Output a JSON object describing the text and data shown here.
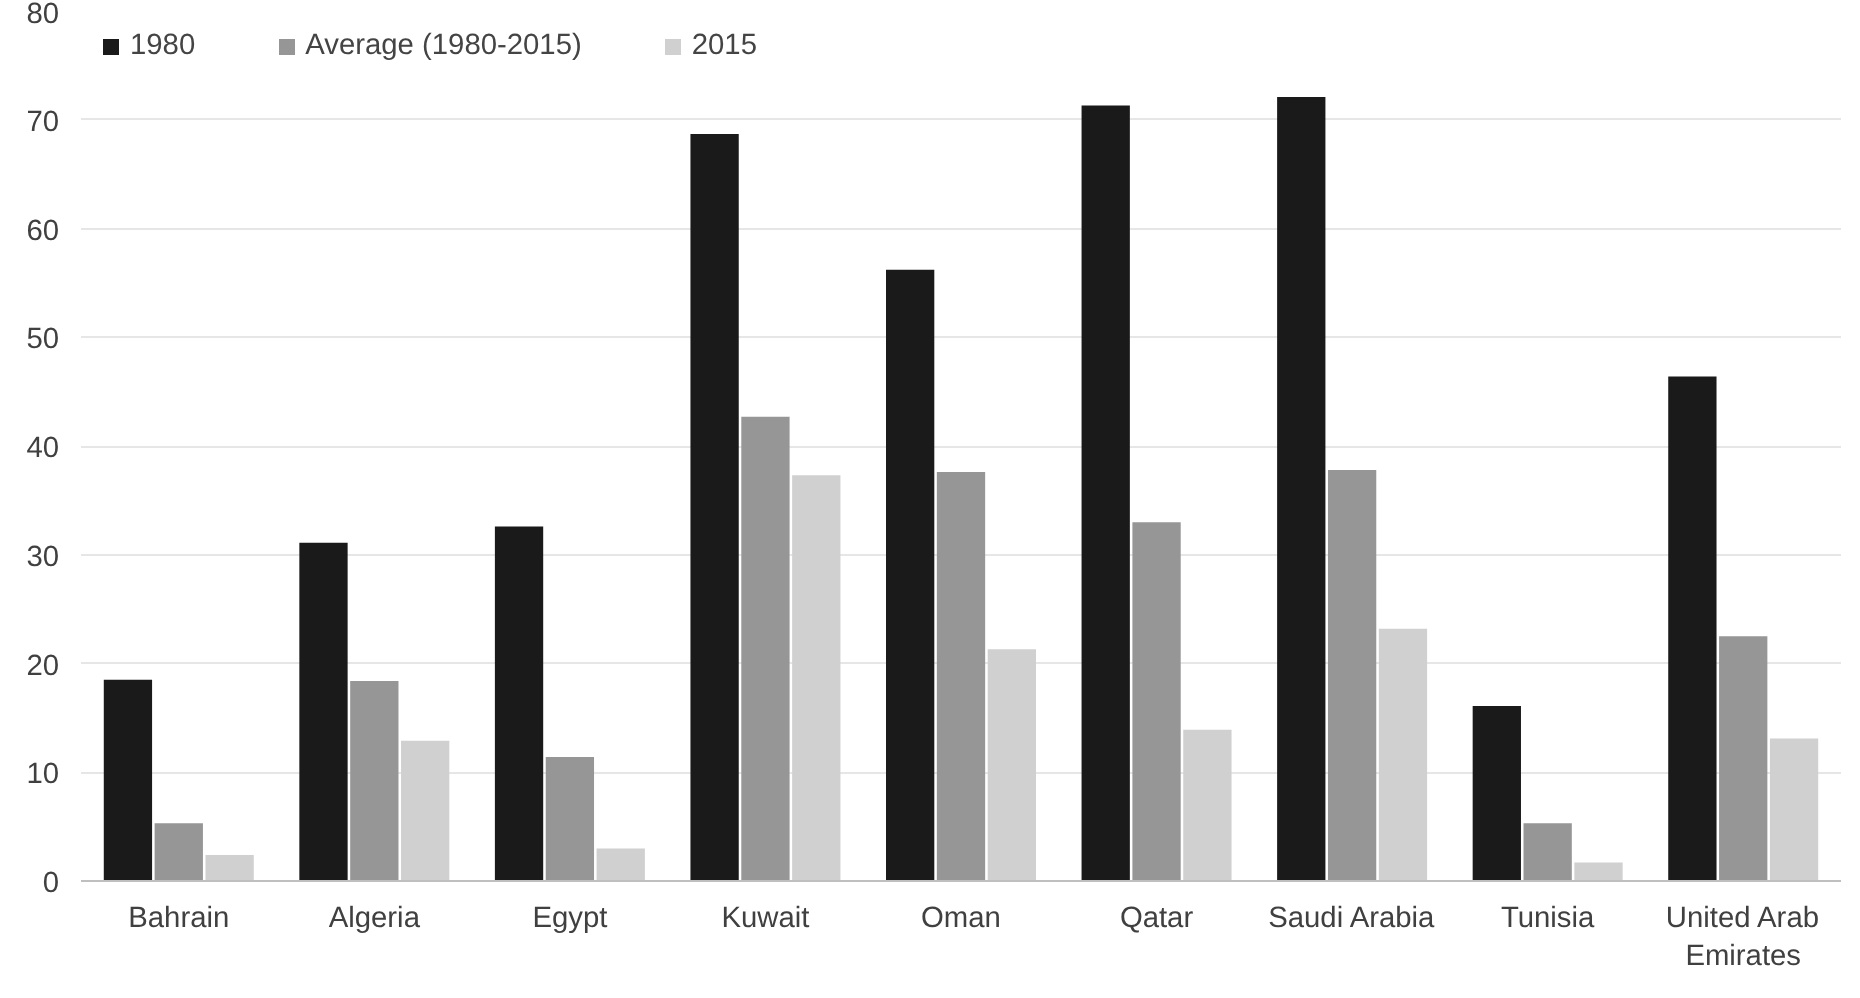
{
  "chart_data": {
    "type": "bar",
    "categories": [
      "Bahrain",
      "Algeria",
      "Egypt",
      "Kuwait",
      "Oman",
      "Qatar",
      "Saudi Arabia",
      "Tunisia",
      "United Arab Emirates"
    ],
    "series": [
      {
        "name": "1980",
        "color": "#1a1a1a",
        "values": [
          18.5,
          31.1,
          32.6,
          68.7,
          56.2,
          71.3,
          72.1,
          16.1,
          46.4
        ]
      },
      {
        "name": "Average (1980-2015)",
        "color": "#969696",
        "values": [
          5.3,
          18.4,
          11.4,
          42.7,
          37.6,
          33.0,
          37.8,
          5.3,
          22.5
        ]
      },
      {
        "name": "2015",
        "color": "#d0d0d0",
        "values": [
          2.4,
          12.9,
          3.0,
          37.3,
          21.3,
          13.9,
          23.2,
          1.7,
          13.1
        ]
      }
    ],
    "ylim": [
      0,
      80
    ],
    "yticks": [
      0,
      10,
      20,
      30,
      40,
      50,
      60,
      70,
      80
    ],
    "grid": "y",
    "legend": "top left"
  }
}
